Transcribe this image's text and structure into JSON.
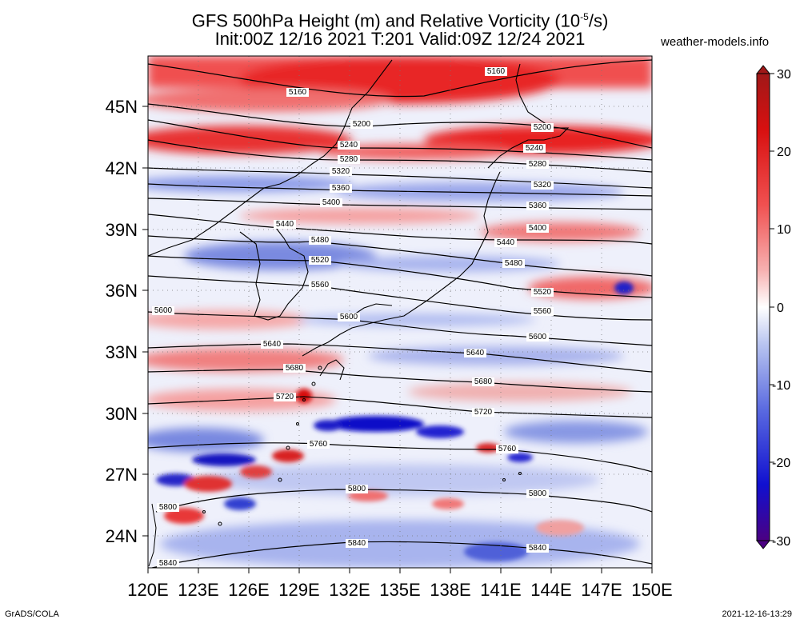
{
  "header": {
    "title_line1": "GFS 500hPa Height (m) and Relative Vorticity (10",
    "title_line1_exp": "-5",
    "title_line1_end": "/s)",
    "title_line2": "Init:00Z 12/16 2021 T:201 Valid:09Z 12/24 2021",
    "site": "weather-models.info"
  },
  "map": {
    "lat_labels": [
      "45N",
      "42N",
      "39N",
      "36N",
      "33N",
      "30N",
      "27N",
      "24N"
    ],
    "lon_labels": [
      "120E",
      "123E",
      "126E",
      "129E",
      "132E",
      "135E",
      "138E",
      "141E",
      "144E",
      "147E",
      "150E"
    ],
    "contour_labels": [
      "5160",
      "5200",
      "5240",
      "5280",
      "5320",
      "5360",
      "5400",
      "5440",
      "5480",
      "5520",
      "5560",
      "5600",
      "5640",
      "5680",
      "5720",
      "5760",
      "5800",
      "5840"
    ]
  },
  "colorbar": {
    "ticks": [
      "30",
      "20",
      "10",
      "0",
      "-10",
      "-20",
      "-30"
    ],
    "colors": [
      "#4b0082",
      "#1010d0",
      "#5a6ae0",
      "#b8c4f0",
      "#ffffff",
      "#f7b0b0",
      "#f05050",
      "#d81010",
      "#a01818"
    ]
  },
  "footer": {
    "credit": "GrADS/COLA",
    "timestamp": "2021-12-16-13:29"
  }
}
